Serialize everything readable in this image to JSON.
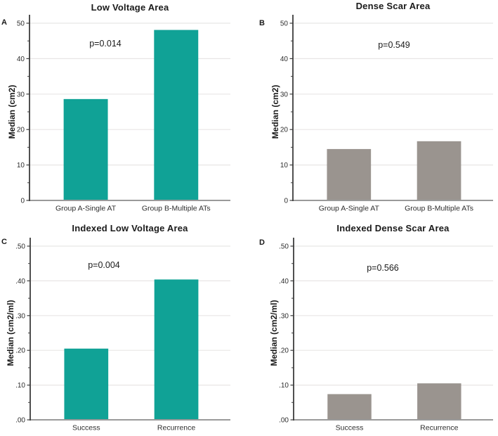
{
  "figure": {
    "background": "#ffffff",
    "grid_color": "#e8e6e5",
    "x_axis_color": "#9a9a9a",
    "y_axis_color": "#3c3c3c",
    "tick_text_color": "#2d2d2d",
    "teal": "#10a296",
    "gray": "#9a948f"
  },
  "chart_data": [
    {
      "type": "bar",
      "panel_label": "A",
      "title": "Low Voltage Area",
      "ylabel": "Median (cm2)",
      "xlabel": "",
      "categories": [
        "Group A-Single AT",
        "Group B-Multiple ATs"
      ],
      "values": [
        28.6,
        48.1
      ],
      "p_label": "p=0.014",
      "bar_color": "#10a296",
      "ylim": [
        0,
        50
      ],
      "ytick_values": [
        0,
        10,
        20,
        30,
        40,
        50
      ],
      "ytick_labels": [
        "0",
        "10",
        "20",
        "30",
        "40",
        "50"
      ],
      "grid": true,
      "legend": "none"
    },
    {
      "type": "bar",
      "panel_label": "B",
      "title": "Dense Scar Area",
      "ylabel": "Median (cm2)",
      "xlabel": "",
      "categories": [
        "Group A-Single AT",
        "Group B-Multiple ATs"
      ],
      "values": [
        14.5,
        16.7
      ],
      "p_label": "p=0.549",
      "bar_color": "#9a948f",
      "ylim": [
        0,
        50
      ],
      "ytick_values": [
        0,
        10,
        20,
        30,
        40,
        50
      ],
      "ytick_labels": [
        "0",
        "10",
        "20",
        "30",
        "40",
        "50"
      ],
      "grid": true,
      "legend": "none"
    },
    {
      "type": "bar",
      "panel_label": "C",
      "title": "Indexed Low Voltage Area",
      "ylabel": "Median (cm2/ml)",
      "xlabel": "",
      "categories": [
        "Success",
        "Recurrence"
      ],
      "values": [
        0.205,
        0.404
      ],
      "p_label": "p=0.004",
      "bar_color": "#10a296",
      "ylim": [
        0,
        0.5
      ],
      "ytick_values": [
        0,
        0.1,
        0.2,
        0.3,
        0.4,
        0.5
      ],
      "ytick_labels": [
        ".00",
        ".10",
        ".20",
        ".30",
        ".40",
        ".50"
      ],
      "grid": true,
      "legend": "none"
    },
    {
      "type": "bar",
      "panel_label": "D",
      "title": "Indexed Dense Scar Area",
      "ylabel": "Median (cm2/ml)",
      "xlabel": "",
      "categories": [
        "Success",
        "Recurrence"
      ],
      "values": [
        0.074,
        0.105
      ],
      "p_label": "p=0.566",
      "bar_color": "#9a948f",
      "ylim": [
        0,
        0.5
      ],
      "ytick_values": [
        0,
        0.1,
        0.2,
        0.3,
        0.4,
        0.5
      ],
      "ytick_labels": [
        ".00",
        ".10",
        ".20",
        ".30",
        ".40",
        ".50"
      ],
      "grid": true,
      "legend": "none"
    }
  ]
}
